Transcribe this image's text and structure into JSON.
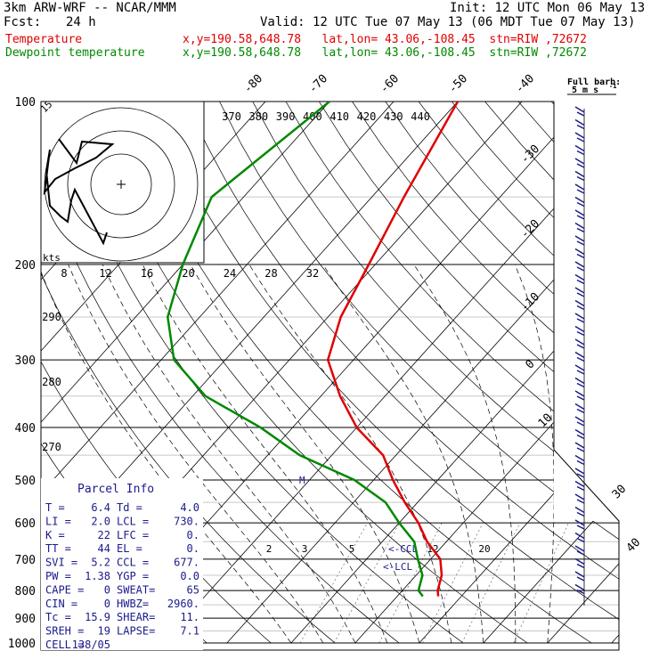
{
  "header": {
    "model": "3km ARW-WRF -- NCAR/MMM",
    "init": "Init: 12 UTC Mon 06 May 13",
    "fcst_label": "Fcst:",
    "fcst_value": "24 h",
    "valid": "Valid: 12 UTC Tue 07 May 13 (06 MDT Tue 07 May 13)",
    "temp_label": "Temperature",
    "temp_info": "x,y=190.58,648.78   lat,lon= 43.06,-108.45  stn=RIW ,72672",
    "dew_label": "Dewpoint temperature",
    "dew_info": "x,y=190.58,648.78   lat,lon= 43.06,-108.45  stn=RIW ,72672"
  },
  "colors": {
    "temperature": "#e00000",
    "dewpoint": "#008800",
    "wind": "#1a1a8c"
  },
  "chart_data": {
    "type": "line",
    "chart_kind": "skew-T log-P sounding",
    "pressure_levels": [
      100,
      200,
      300,
      400,
      500,
      600,
      700,
      800,
      900,
      1000
    ],
    "pressure_axis_labels": [
      "100",
      "200",
      "300",
      "400",
      "500",
      "600",
      "700",
      "800",
      "900",
      "1000"
    ],
    "isotherm_labels": [
      "-80",
      "-70",
      "-60",
      "-50",
      "-40",
      "-30",
      "-20",
      "-10",
      "0",
      "10",
      "30",
      "40"
    ],
    "theta_labels": [
      "370",
      "380",
      "390",
      "400",
      "410",
      "420",
      "430",
      "440"
    ],
    "left_theta_labels": [
      "290",
      "280",
      "270"
    ],
    "mixing_ratio_labels": [
      "2",
      "3",
      "5",
      "12",
      "20"
    ],
    "hodograph": {
      "units": "kts",
      "speed_labels": [
        "8",
        "12",
        "16",
        "20",
        "24",
        "28",
        "32"
      ],
      "ring_label": "15",
      "points": [
        [
          -35,
          17
        ],
        [
          -25,
          8
        ],
        [
          -22,
          16
        ],
        [
          -5,
          15
        ],
        [
          -14,
          10
        ],
        [
          -26,
          6
        ],
        [
          -37,
          2
        ],
        [
          -43,
          -3
        ],
        [
          -40,
          13
        ],
        [
          -42,
          5
        ],
        [
          -40,
          -8
        ],
        [
          -34,
          -12
        ],
        [
          -30,
          -14
        ],
        [
          -28,
          -6
        ],
        [
          -26,
          -2
        ],
        [
          -18,
          -12
        ],
        [
          -10,
          -22
        ],
        [
          -8,
          -18
        ]
      ]
    },
    "series": [
      {
        "name": "Temperature",
        "points": [
          [
            100,
            -60
          ],
          [
            150,
            -55
          ],
          [
            200,
            -51
          ],
          [
            250,
            -48
          ],
          [
            300,
            -44
          ],
          [
            350,
            -37
          ],
          [
            400,
            -30
          ],
          [
            450,
            -22
          ],
          [
            500,
            -17
          ],
          [
            550,
            -12
          ],
          [
            600,
            -7
          ],
          [
            650,
            -3
          ],
          [
            700,
            1.5
          ],
          [
            750,
            4
          ],
          [
            800,
            5.5
          ],
          [
            820,
            6.4
          ]
        ]
      },
      {
        "name": "Dewpoint temperature",
        "points": [
          [
            100,
            -80
          ],
          [
            150,
            -85
          ],
          [
            200,
            -80
          ],
          [
            250,
            -75
          ],
          [
            300,
            -68
          ],
          [
            350,
            -58
          ],
          [
            400,
            -45
          ],
          [
            450,
            -35
          ],
          [
            500,
            -23
          ],
          [
            550,
            -15
          ],
          [
            600,
            -10
          ],
          [
            650,
            -5
          ],
          [
            700,
            -2
          ],
          [
            750,
            1
          ],
          [
            800,
            2.5
          ],
          [
            820,
            4
          ]
        ]
      }
    ],
    "wind_barb_label": "Full barb:",
    "wind_barb_unit": "5 m s",
    "wind_barb_exponent": "-1",
    "markers": [
      "M",
      "CCL",
      "LCL"
    ],
    "parcel_info": {
      "title": "Parcel Info",
      "rows": [
        [
          "T  =",
          "6.4",
          "Td =",
          "4.0"
        ],
        [
          "LI =",
          "2.0",
          "LCL =",
          "730."
        ],
        [
          "K  =",
          "22",
          "LFC =",
          "0."
        ],
        [
          "TT =",
          "44",
          "EL  =",
          "0."
        ],
        [
          "SVI =",
          "5.2",
          "CCL =",
          "677."
        ],
        [
          "PW =",
          "1.38",
          "YGP =",
          "0.0"
        ],
        [
          "CAPE =",
          "0",
          "SWEAT=",
          "65"
        ],
        [
          "CIN =",
          "0",
          "HWBZ=",
          "2960."
        ],
        [
          "Tc =",
          "15.9",
          "SHEAR=",
          "11."
        ],
        [
          "SREH =",
          "19",
          "LAPSE=",
          "7.1"
        ],
        [
          "CELL =",
          "138/05",
          "",
          ""
        ]
      ]
    }
  }
}
